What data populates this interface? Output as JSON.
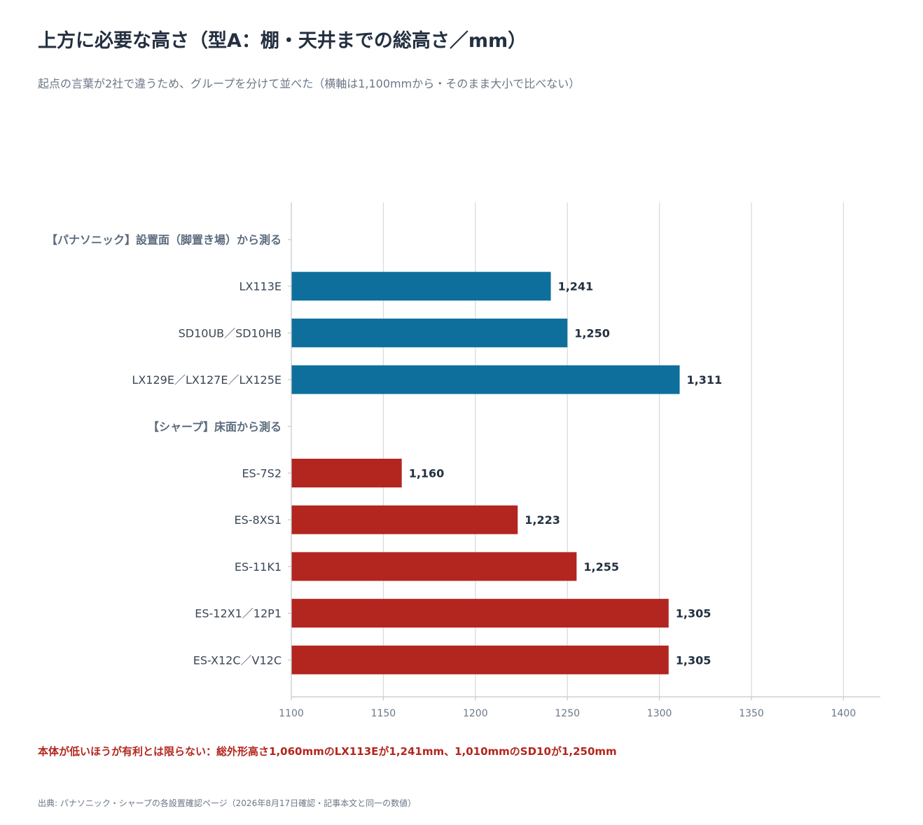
{
  "title": "上方に必要な高さ（型A：棚・天井までの総高さ／mm）",
  "subtitle": "起点の言葉が2社で違うため、グループを分けて並べた（横軸は1,100mmから・そのまま大小で比べない）",
  "note": "本体が低いほうが有利とは限らない：総外形高さ1,060mmのLX113Eが1,241mm、1,010mmのSD10が1,250mm",
  "source": "出典: パナソニック・シャープの各設置確認ページ（2026年8月17日確認・記事本文と同一の数値）",
  "colors": {
    "panasonic": "#0e6f9c",
    "sharp": "#b3251f",
    "grid": "#d6d9dd",
    "axis": "#c4c8cd"
  },
  "chart_data": {
    "type": "bar",
    "orientation": "horizontal",
    "xlim": [
      1100,
      1420
    ],
    "x_ticks": [
      1100,
      1150,
      1200,
      1250,
      1300,
      1350,
      1400
    ],
    "x_tick_labels": [
      "1100",
      "1150",
      "1200",
      "1250",
      "1300",
      "1350",
      "1400"
    ],
    "grid": true,
    "rows": [
      {
        "label": "【パナソニック】設置面（脚置き場）から測る",
        "group_header": true
      },
      {
        "label": "LX113E",
        "value": 1241,
        "value_label": "1,241",
        "group": "panasonic"
      },
      {
        "label": "SD10UB／SD10HB",
        "value": 1250,
        "value_label": "1,250",
        "group": "panasonic"
      },
      {
        "label": "LX129E／LX127E／LX125E",
        "value": 1311,
        "value_label": "1,311",
        "group": "panasonic"
      },
      {
        "label": "【シャープ】床面から測る",
        "group_header": true
      },
      {
        "label": "ES-7S2",
        "value": 1160,
        "value_label": "1,160",
        "group": "sharp"
      },
      {
        "label": "ES-8XS1",
        "value": 1223,
        "value_label": "1,223",
        "group": "sharp"
      },
      {
        "label": "ES-11K1",
        "value": 1255,
        "value_label": "1,255",
        "group": "sharp"
      },
      {
        "label": "ES-12X1／12P1",
        "value": 1305,
        "value_label": "1,305",
        "group": "sharp"
      },
      {
        "label": "ES-X12C／V12C",
        "value": 1305,
        "value_label": "1,305",
        "group": "sharp"
      }
    ]
  }
}
